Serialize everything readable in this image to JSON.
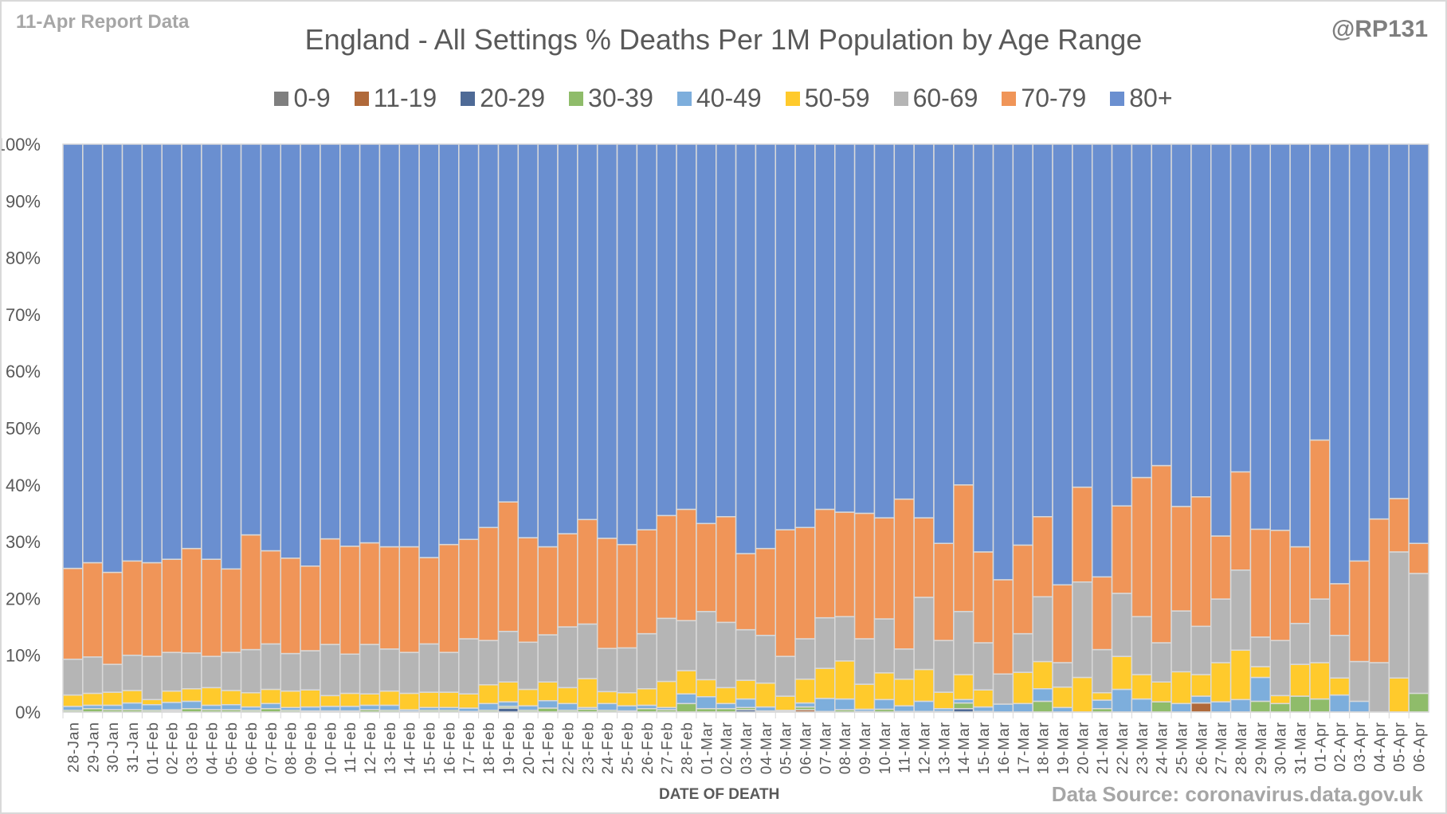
{
  "header": {
    "report_label": "11-Apr Report Data",
    "handle": "@RP131"
  },
  "footer": {
    "source": "Data Source: coronavirus.data.gov.uk"
  },
  "chart_data": {
    "type": "bar",
    "stacked": "percent",
    "title": "England - All Settings % Deaths Per 1M Population by Age Range",
    "xlabel": "DATE OF DEATH",
    "ylabel": "",
    "ylim": [
      0,
      100
    ],
    "yticks": [
      "0%",
      "10%",
      "20%",
      "30%",
      "40%",
      "50%",
      "60%",
      "70%",
      "80%",
      "90%",
      "100%"
    ],
    "grid": true,
    "legend_position": "top",
    "categories": [
      "28-Jan",
      "29-Jan",
      "30-Jan",
      "31-Jan",
      "01-Feb",
      "02-Feb",
      "03-Feb",
      "04-Feb",
      "05-Feb",
      "06-Feb",
      "07-Feb",
      "08-Feb",
      "09-Feb",
      "10-Feb",
      "11-Feb",
      "12-Feb",
      "13-Feb",
      "14-Feb",
      "15-Feb",
      "16-Feb",
      "17-Feb",
      "18-Feb",
      "19-Feb",
      "20-Feb",
      "21-Feb",
      "22-Feb",
      "23-Feb",
      "24-Feb",
      "25-Feb",
      "26-Feb",
      "27-Feb",
      "28-Feb",
      "01-Mar",
      "02-Mar",
      "03-Mar",
      "04-Mar",
      "05-Mar",
      "06-Mar",
      "07-Mar",
      "08-Mar",
      "09-Mar",
      "10-Mar",
      "11-Mar",
      "12-Mar",
      "13-Mar",
      "14-Mar",
      "15-Mar",
      "16-Mar",
      "17-Mar",
      "18-Mar",
      "19-Mar",
      "20-Mar",
      "21-Mar",
      "22-Mar",
      "23-Mar",
      "24-Mar",
      "25-Mar",
      "26-Mar",
      "27-Mar",
      "28-Mar",
      "29-Mar",
      "30-Mar",
      "31-Mar",
      "01-Apr",
      "02-Apr",
      "03-Apr",
      "04-Apr",
      "05-Apr",
      "06-Apr"
    ],
    "series": [
      {
        "name": "0-9",
        "color": "#7f7f7f",
        "values": [
          0,
          0,
          0,
          0,
          0,
          0,
          0,
          0,
          0,
          0,
          0,
          0,
          0,
          0,
          0,
          0,
          0,
          0,
          0,
          0,
          0,
          0,
          0,
          0,
          0,
          0,
          0,
          0,
          0,
          0,
          0,
          0,
          0,
          0,
          0,
          0,
          0,
          0,
          0,
          0,
          0,
          0,
          0,
          0,
          0,
          0,
          0,
          0,
          0,
          0,
          0,
          0,
          0,
          0,
          0,
          0,
          0,
          0,
          0,
          0,
          0,
          0,
          0,
          0,
          0,
          0,
          0,
          0,
          0
        ]
      },
      {
        "name": "11-19",
        "color": "#b0693a",
        "values": [
          0,
          0,
          0,
          0,
          0,
          0,
          0,
          0,
          0,
          0,
          0,
          0,
          0,
          0,
          0,
          0,
          0,
          0,
          0,
          0,
          0,
          0,
          0,
          0,
          0,
          0,
          0,
          0,
          0,
          0,
          0,
          0,
          0,
          0,
          0,
          0,
          0,
          0.4,
          0,
          0,
          0,
          0,
          0,
          0,
          0,
          0,
          0,
          0,
          0,
          0,
          0,
          0,
          0,
          0,
          0,
          0,
          0,
          1.6,
          0,
          0,
          0,
          0,
          0,
          0,
          0,
          0,
          0,
          0,
          0
        ]
      },
      {
        "name": "20-29",
        "color": "#4e6a96",
        "values": [
          0,
          0,
          0,
          0,
          0,
          0.2,
          0,
          0,
          0,
          0,
          0,
          0,
          0,
          0,
          0,
          0,
          0,
          0,
          0,
          0,
          0,
          0,
          0.7,
          0,
          0,
          0,
          0,
          0,
          0,
          0,
          0,
          0,
          0,
          0,
          0.4,
          0,
          0,
          0,
          0,
          0,
          0,
          0,
          0,
          0,
          0,
          0.6,
          0,
          0,
          0,
          0,
          0,
          0,
          0,
          0,
          0,
          0,
          0,
          0,
          0,
          0,
          0,
          0,
          0,
          0,
          0,
          0,
          0,
          0,
          0
        ]
      },
      {
        "name": "30-39",
        "color": "#8fbc6a",
        "values": [
          0.3,
          0.6,
          0.4,
          0.4,
          0.3,
          0.2,
          0.6,
          0.4,
          0.4,
          0.3,
          0.6,
          0.3,
          0.2,
          0.2,
          0.2,
          0.4,
          0.3,
          0.1,
          0.3,
          0.3,
          0.1,
          0.3,
          0.3,
          0.3,
          0.7,
          0.3,
          0.5,
          0.3,
          0.2,
          0.6,
          0.4,
          1.5,
          0.6,
          0.6,
          0.4,
          0.2,
          0.1,
          0.5,
          0.1,
          0.4,
          0.1,
          0.5,
          0.1,
          0.1,
          0.1,
          1.0,
          0.1,
          0,
          0,
          1.9,
          0,
          0,
          0.6,
          0,
          0,
          1.8,
          0,
          0,
          0,
          0,
          1.9,
          1.5,
          2.8,
          2.3,
          0,
          0,
          0,
          0,
          3.3
        ]
      },
      {
        "name": "40-49",
        "color": "#7daedc",
        "values": [
          0.7,
          0.6,
          0.8,
          1.2,
          1.0,
          1.3,
          1.3,
          0.8,
          0.9,
          0.6,
          0.9,
          0.5,
          0.7,
          0.8,
          0.8,
          0.8,
          0.9,
          0.3,
          0.5,
          0.5,
          0.6,
          1.2,
          0.8,
          0.8,
          1.3,
          1.2,
          0.3,
          1.2,
          0.9,
          0.6,
          0.4,
          1.7,
          2.1,
          0.9,
          1.5,
          0.7,
          0.2,
          0.7,
          2.3,
          1.9,
          0.4,
          1.7,
          1.0,
          1.8,
          0.5,
          0.6,
          0.8,
          1.4,
          1.5,
          2.2,
          0.8,
          0,
          1.5,
          4.0,
          2.3,
          0,
          1.5,
          1.2,
          1.8,
          2.2,
          4.2,
          0,
          0,
          0,
          3.0,
          1.9,
          0,
          0,
          0
        ]
      },
      {
        "name": "50-59",
        "color": "#ffca2c",
        "values": [
          2.0,
          2.1,
          2.3,
          2.2,
          0.9,
          2.0,
          2.2,
          3.1,
          2.5,
          2.5,
          2.5,
          2.9,
          3.0,
          1.9,
          2.3,
          2.0,
          2.5,
          2.9,
          2.7,
          2.7,
          2.5,
          3.3,
          3.5,
          2.9,
          3.3,
          2.8,
          5.1,
          2.1,
          2.3,
          2.9,
          4.6,
          4.1,
          3.0,
          2.8,
          3.3,
          4.2,
          2.5,
          4.2,
          5.3,
          6.7,
          4.4,
          4.7,
          4.7,
          5.6,
          2.9,
          4.4,
          3.0,
          0,
          5.5,
          4.8,
          3.6,
          6.1,
          1.3,
          5.8,
          4.3,
          3.5,
          5.6,
          3.8,
          6.9,
          8.7,
          1.9,
          1.4,
          5.6,
          6.4,
          3.0,
          0,
          0,
          6.0,
          0
        ]
      },
      {
        "name": "60-69",
        "color": "#b5b5b5",
        "values": [
          6.3,
          6.4,
          4.9,
          6.2,
          7.6,
          6.8,
          6.3,
          5.5,
          6.7,
          7.6,
          8.0,
          6.6,
          6.9,
          9.0,
          6.9,
          8.7,
          7.4,
          7.2,
          8.5,
          7.0,
          9.7,
          7.8,
          8.9,
          8.3,
          8.3,
          10.7,
          9.6,
          7.6,
          7.9,
          9.7,
          11.1,
          8.8,
          12.0,
          11.5,
          8.9,
          8.4,
          7.0,
          7.1,
          8.9,
          7.8,
          8.0,
          9.5,
          5.3,
          12.7,
          9.1,
          11.1,
          8.3,
          5.3,
          6.8,
          11.4,
          4.3,
          16.8,
          7.6,
          11.1,
          10.2,
          6.9,
          10.7,
          8.5,
          11.2,
          14.1,
          5.2,
          9.7,
          7.2,
          11.2,
          7.5,
          7.0,
          8.7,
          22.2,
          21.1
        ]
      },
      {
        "name": "70-79",
        "color": "#f09558",
        "values": [
          16.0,
          16.6,
          16.2,
          16.6,
          16.5,
          16.4,
          18.4,
          17.1,
          14.7,
          20.2,
          16.4,
          16.8,
          14.9,
          18.6,
          19.0,
          17.9,
          18.0,
          18.6,
          15.2,
          19.0,
          17.5,
          19.9,
          22.8,
          18.4,
          15.5,
          16.4,
          18.4,
          19.4,
          18.2,
          18.3,
          18.1,
          19.6,
          15.5,
          18.6,
          13.4,
          15.3,
          22.3,
          19.6,
          19.1,
          18.4,
          22.1,
          17.8,
          26.4,
          14.0,
          17.1,
          22.3,
          16.0,
          16.6,
          15.6,
          14.1,
          13.7,
          16.7,
          12.8,
          15.4,
          24.5,
          31.2,
          18.4,
          22.8,
          11.1,
          17.3,
          19.0,
          19.4,
          13.5,
          28.0,
          9.1,
          17.7,
          25.3,
          9.4,
          5.3
        ]
      },
      {
        "name": "80+",
        "color": "#6a8fd0",
        "values": [
          74.7,
          73.7,
          75.4,
          73.4,
          73.7,
          73.1,
          71.2,
          73.1,
          74.8,
          68.8,
          71.6,
          72.9,
          74.3,
          69.5,
          70.8,
          70.2,
          70.9,
          70.9,
          72.8,
          70.5,
          69.6,
          67.5,
          63.0,
          69.3,
          70.9,
          68.6,
          66.1,
          69.4,
          70.5,
          67.9,
          65.4,
          64.3,
          66.8,
          65.6,
          72.1,
          71.2,
          67.9,
          67.5,
          64.3,
          64.8,
          65.0,
          65.8,
          62.5,
          65.8,
          70.3,
          60.0,
          71.8,
          76.7,
          70.6,
          65.6,
          77.6,
          60.4,
          76.2,
          63.7,
          58.7,
          56.6,
          63.8,
          62.1,
          69.0,
          57.7,
          67.8,
          68.0,
          70.9,
          52.1,
          77.4,
          73.4,
          66.0,
          62.4,
          70.3
        ]
      }
    ]
  }
}
